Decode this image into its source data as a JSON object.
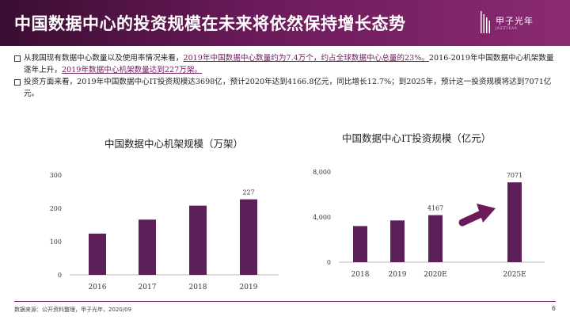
{
  "header": {
    "title": "中国数据中心的投资规模在未来将依然保持增长态势",
    "logo_text": "甲子光年",
    "logo_sub": "JAZZYEAR"
  },
  "bullets": [
    {
      "pre": "从我国现有数据中心数量以及使用率情况来看，",
      "hl1": "2019年中国数据中心数量约为7.4万个，约占全球数据中心总量的23%。",
      "mid": "2016-2019年中国数据中心机架数量逐年上升，",
      "hl2": "2019年数据中心机架数量达到227万架。"
    },
    {
      "text": "投资方面来看，2019年中国数据中心IT投资规模达3698亿，预计2020年达到4166.8亿元，同比增长12.7%；到2025年，预计这一投资规模将达到7071亿元。"
    }
  ],
  "chart_data": [
    {
      "type": "bar",
      "title": "中国数据中心机架规模（万架）",
      "categories": [
        "2016",
        "2017",
        "2018",
        "2019"
      ],
      "values": [
        124,
        166,
        208,
        227
      ],
      "data_labels": [
        "",
        "",
        "",
        "227"
      ],
      "yticks": [
        "0",
        "100",
        "200",
        "300"
      ],
      "ylim": [
        0,
        300
      ],
      "color": "#5c1f5a",
      "grid": false
    },
    {
      "type": "bar",
      "title": "中国数据中心IT投资规模（亿元）",
      "categories": [
        "2018",
        "2019",
        "2020E",
        "2025E"
      ],
      "values": [
        3200,
        3698,
        4167,
        7071
      ],
      "data_labels": [
        "",
        "",
        "4167",
        "7071"
      ],
      "yticks": [
        "0",
        "4,000",
        "8,000"
      ],
      "ylim": [
        0,
        8000
      ],
      "color": "#5c1f5a",
      "grid": false,
      "annotation": "arrow-up-right"
    }
  ],
  "footer": {
    "source": "数据来源：公开资料整理，甲子光年，2020/09",
    "page": "6"
  }
}
